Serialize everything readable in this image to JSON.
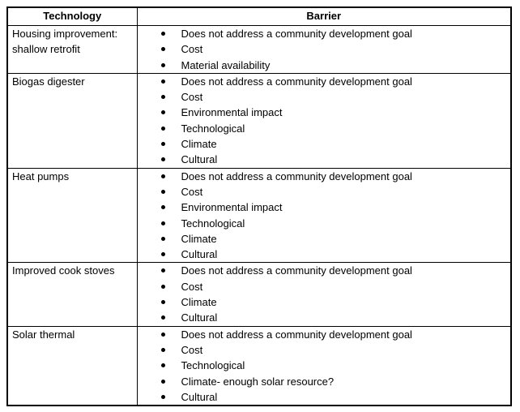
{
  "table": {
    "headers": [
      "Technology",
      "Barrier"
    ],
    "rows": [
      {
        "technology": "Housing improvement: shallow retrofit",
        "barriers": [
          "Does not address a community development goal",
          "Cost",
          "Material availability"
        ]
      },
      {
        "technology": "Biogas digester",
        "barriers": [
          "Does not address a community development goal",
          "Cost",
          "Environmental impact",
          "Technological",
          "Climate",
          "Cultural"
        ]
      },
      {
        "technology": "Heat pumps",
        "barriers": [
          "Does not address a community development goal",
          "Cost",
          "Environmental impact",
          "Technological",
          "Climate",
          "Cultural"
        ]
      },
      {
        "technology": "Improved cook stoves",
        "barriers": [
          "Does not address a community development goal",
          "Cost",
          "Climate",
          "Cultural"
        ]
      },
      {
        "technology": "Solar thermal",
        "barriers": [
          "Does not address a community development goal",
          "Cost",
          "Technological",
          "Climate- enough solar resource?",
          "Cultural"
        ]
      }
    ]
  },
  "colors": {
    "border": "#000000",
    "text": "#000000",
    "background": "#ffffff"
  }
}
